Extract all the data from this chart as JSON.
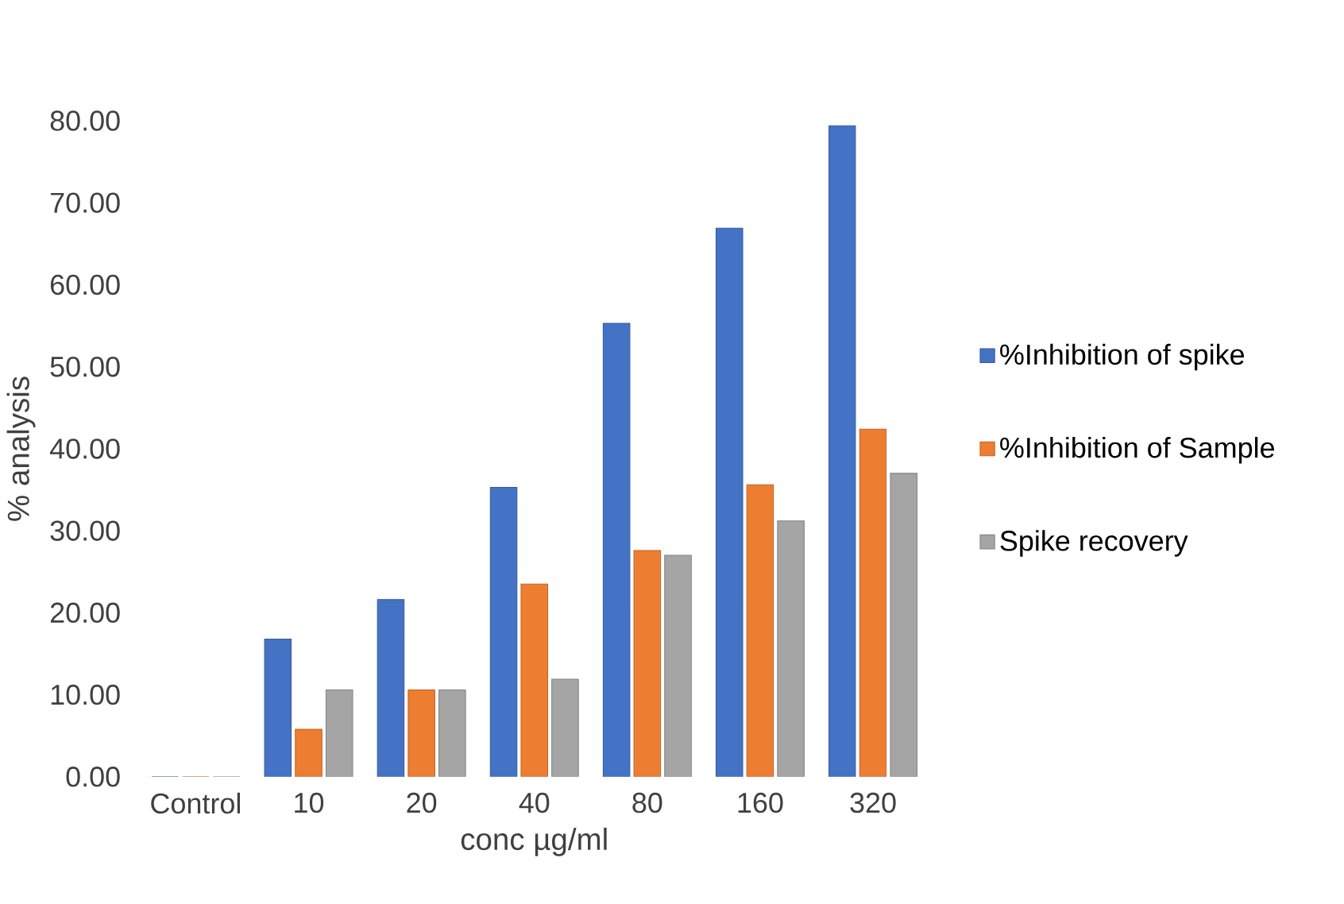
{
  "chart_data": {
    "type": "bar",
    "xlabel": "conc µg/ml",
    "ylabel": "% analysis",
    "categories": [
      "Control",
      "10",
      "20",
      "40",
      "80",
      "160",
      "320"
    ],
    "series": [
      {
        "name": "%Inhibition of spike",
        "color": "#4472c4",
        "values": [
          0,
          16.8,
          21.6,
          35.3,
          55.3,
          66.9,
          79.4
        ]
      },
      {
        "name": "%Inhibition of Sample",
        "color": "#ed7d31",
        "values": [
          0,
          5.8,
          10.6,
          23.5,
          27.6,
          35.6,
          42.4
        ]
      },
      {
        "name": "Spike recovery",
        "color": "#a5a5a5",
        "values": [
          0,
          10.6,
          10.6,
          11.9,
          27.0,
          31.2,
          37.0
        ]
      }
    ],
    "ylim": [
      0,
      80
    ],
    "yticks": [
      {
        "value": 0,
        "label": "0.00"
      },
      {
        "value": 10,
        "label": "10.00"
      },
      {
        "value": 20,
        "label": "20.00"
      },
      {
        "value": 30,
        "label": "30.00"
      },
      {
        "value": 40,
        "label": "40.00"
      },
      {
        "value": 50,
        "label": "50.00"
      },
      {
        "value": 60,
        "label": "60.00"
      },
      {
        "value": 70,
        "label": "70.00"
      },
      {
        "value": 80,
        "label": "80.00"
      }
    ],
    "legend": "right"
  }
}
